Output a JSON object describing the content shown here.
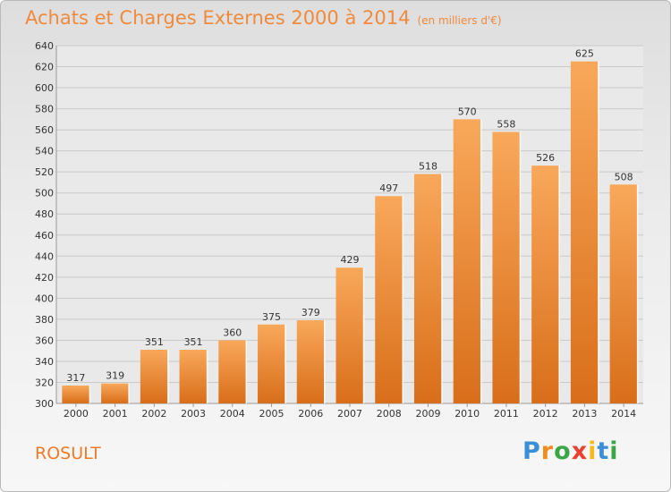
{
  "header": {
    "title": "Achats et Charges Externes 2000 à 2014",
    "unit": "(en milliers d'€)"
  },
  "footer": {
    "commune": "ROSULT",
    "logo_text": "Proxiti"
  },
  "colors": {
    "bar_top": "#f9a85a",
    "bar_bottom": "#d86e1a",
    "title": "#f08a3c"
  },
  "chart_data": {
    "type": "bar",
    "title": "Achats et Charges Externes 2000 à 2014",
    "subtitle": "(en milliers d'€)",
    "categories": [
      "2000",
      "2001",
      "2002",
      "2003",
      "2004",
      "2005",
      "2006",
      "2007",
      "2008",
      "2009",
      "2010",
      "2011",
      "2012",
      "2013",
      "2014"
    ],
    "values": [
      317,
      319,
      351,
      351,
      360,
      375,
      379,
      429,
      497,
      518,
      570,
      558,
      526,
      625,
      508
    ],
    "ylim": [
      300,
      640
    ],
    "yticks": [
      300,
      320,
      340,
      360,
      380,
      400,
      420,
      440,
      460,
      480,
      500,
      520,
      540,
      560,
      580,
      600,
      620,
      640
    ],
    "grid": true,
    "data_labels": true
  }
}
